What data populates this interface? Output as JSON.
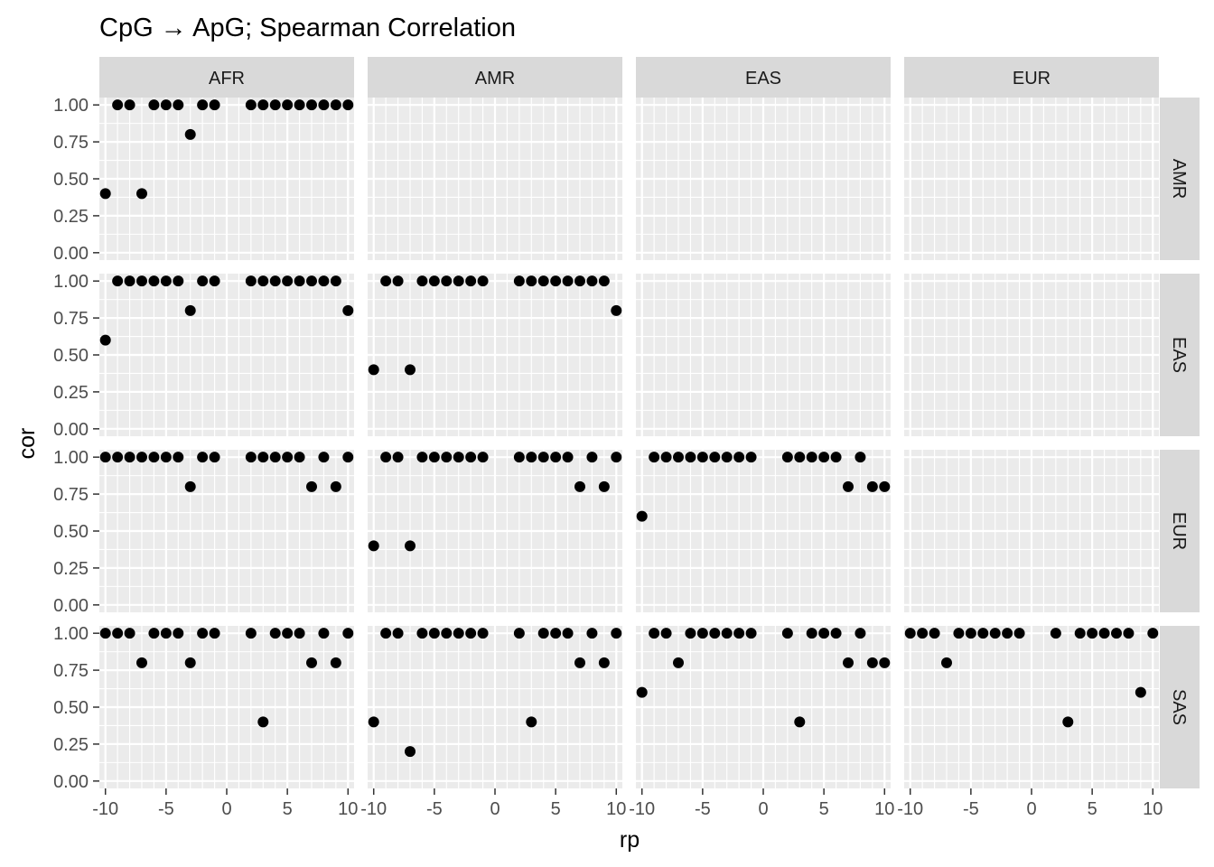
{
  "chart_data": {
    "type": "scatter",
    "title": "CpG → ApG; Spearman Correlation",
    "xlabel": "rp",
    "ylabel": "cor",
    "xlim": [
      -10.5,
      10.5
    ],
    "ylim": [
      -0.05,
      1.05
    ],
    "x_ticks": [
      -10,
      -5,
      0,
      5,
      10
    ],
    "x_tick_labels": [
      "-10",
      "-5",
      "0",
      "5",
      "10"
    ],
    "y_ticks": [
      0,
      0.25,
      0.5,
      0.75,
      1
    ],
    "y_tick_labels": [
      "0.00",
      "0.25",
      "0.50",
      "0.75",
      "1.00"
    ],
    "grid": true,
    "col_facets": [
      "AFR",
      "AMR",
      "EAS",
      "EUR"
    ],
    "row_facets": [
      "AMR",
      "EAS",
      "EUR",
      "SAS"
    ],
    "panels": [
      {
        "row": "AMR",
        "col": "AFR",
        "x": [
          -10,
          -9,
          -8,
          -7,
          -6,
          -5,
          -4,
          -3,
          -2,
          -1,
          2,
          3,
          4,
          5,
          6,
          7,
          8,
          9,
          10
        ],
        "y": [
          0.4,
          1,
          1,
          0.4,
          1,
          1,
          1,
          0.8,
          1,
          1,
          1,
          1,
          1,
          1,
          1,
          1,
          1,
          1,
          1
        ]
      },
      {
        "row": "EAS",
        "col": "AFR",
        "x": [
          -10,
          -9,
          -8,
          -7,
          -6,
          -5,
          -4,
          -3,
          -2,
          -1,
          2,
          3,
          4,
          5,
          6,
          7,
          8,
          9,
          10
        ],
        "y": [
          0.6,
          1,
          1,
          1,
          1,
          1,
          1,
          0.8,
          1,
          1,
          1,
          1,
          1,
          1,
          1,
          1,
          1,
          1,
          0.8
        ]
      },
      {
        "row": "EAS",
        "col": "AMR",
        "x": [
          -10,
          -9,
          -8,
          -7,
          -6,
          -5,
          -4,
          -3,
          -2,
          -1,
          2,
          3,
          4,
          5,
          6,
          7,
          8,
          9,
          10
        ],
        "y": [
          0.4,
          1,
          1,
          0.4,
          1,
          1,
          1,
          1,
          1,
          1,
          1,
          1,
          1,
          1,
          1,
          1,
          1,
          1,
          0.8
        ]
      },
      {
        "row": "EUR",
        "col": "AFR",
        "x": [
          -10,
          -9,
          -8,
          -7,
          -6,
          -5,
          -4,
          -3,
          -2,
          -1,
          2,
          3,
          4,
          5,
          6,
          7,
          8,
          9,
          10
        ],
        "y": [
          1,
          1,
          1,
          1,
          1,
          1,
          1,
          0.8,
          1,
          1,
          1,
          1,
          1,
          1,
          1,
          0.8,
          1,
          0.8,
          1
        ]
      },
      {
        "row": "EUR",
        "col": "AMR",
        "x": [
          -10,
          -9,
          -8,
          -7,
          -6,
          -5,
          -4,
          -3,
          -2,
          -1,
          2,
          3,
          4,
          5,
          6,
          7,
          8,
          9,
          10
        ],
        "y": [
          0.4,
          1,
          1,
          0.4,
          1,
          1,
          1,
          1,
          1,
          1,
          1,
          1,
          1,
          1,
          1,
          0.8,
          1,
          0.8,
          1
        ]
      },
      {
        "row": "EUR",
        "col": "EAS",
        "x": [
          -10,
          -9,
          -8,
          -7,
          -6,
          -5,
          -4,
          -3,
          -2,
          -1,
          2,
          3,
          4,
          5,
          6,
          7,
          8,
          9,
          10
        ],
        "y": [
          0.6,
          1,
          1,
          1,
          1,
          1,
          1,
          1,
          1,
          1,
          1,
          1,
          1,
          1,
          1,
          0.8,
          1,
          0.8,
          0.8
        ]
      },
      {
        "row": "SAS",
        "col": "AFR",
        "x": [
          -10,
          -9,
          -8,
          -7,
          -6,
          -5,
          -4,
          -3,
          -2,
          -1,
          2,
          3,
          4,
          5,
          6,
          7,
          8,
          9,
          10
        ],
        "y": [
          1,
          1,
          1,
          0.8,
          1,
          1,
          1,
          0.8,
          1,
          1,
          1,
          0.4,
          1,
          1,
          1,
          0.8,
          1,
          0.8,
          1
        ]
      },
      {
        "row": "SAS",
        "col": "AMR",
        "x": [
          -10,
          -9,
          -8,
          -7,
          -6,
          -5,
          -4,
          -3,
          -2,
          -1,
          2,
          3,
          4,
          5,
          6,
          7,
          8,
          9,
          10
        ],
        "y": [
          0.4,
          1,
          1,
          0.2,
          1,
          1,
          1,
          1,
          1,
          1,
          1,
          0.4,
          1,
          1,
          1,
          0.8,
          1,
          0.8,
          1
        ]
      },
      {
        "row": "SAS",
        "col": "EAS",
        "x": [
          -10,
          -9,
          -8,
          -7,
          -6,
          -5,
          -4,
          -3,
          -2,
          -1,
          2,
          3,
          4,
          5,
          6,
          7,
          8,
          9,
          10
        ],
        "y": [
          0.6,
          1,
          1,
          0.8,
          1,
          1,
          1,
          1,
          1,
          1,
          1,
          0.4,
          1,
          1,
          1,
          0.8,
          1,
          0.8,
          0.8
        ]
      },
      {
        "row": "SAS",
        "col": "EUR",
        "x": [
          -10,
          -9,
          -8,
          -7,
          -6,
          -5,
          -4,
          -3,
          -2,
          -1,
          2,
          3,
          4,
          5,
          6,
          7,
          8,
          9,
          10
        ],
        "y": [
          1,
          1,
          1,
          0.8,
          1,
          1,
          1,
          1,
          1,
          1,
          1,
          0.4,
          1,
          1,
          1,
          1,
          1,
          0.6,
          1
        ]
      }
    ],
    "colors": {
      "panel_bg": "#ebebeb",
      "grid_major": "#ffffff",
      "strip_bg": "#d9d9d9",
      "point": "#000000",
      "text": "#1a1a1a",
      "tick_text": "#4d4d4d"
    }
  }
}
